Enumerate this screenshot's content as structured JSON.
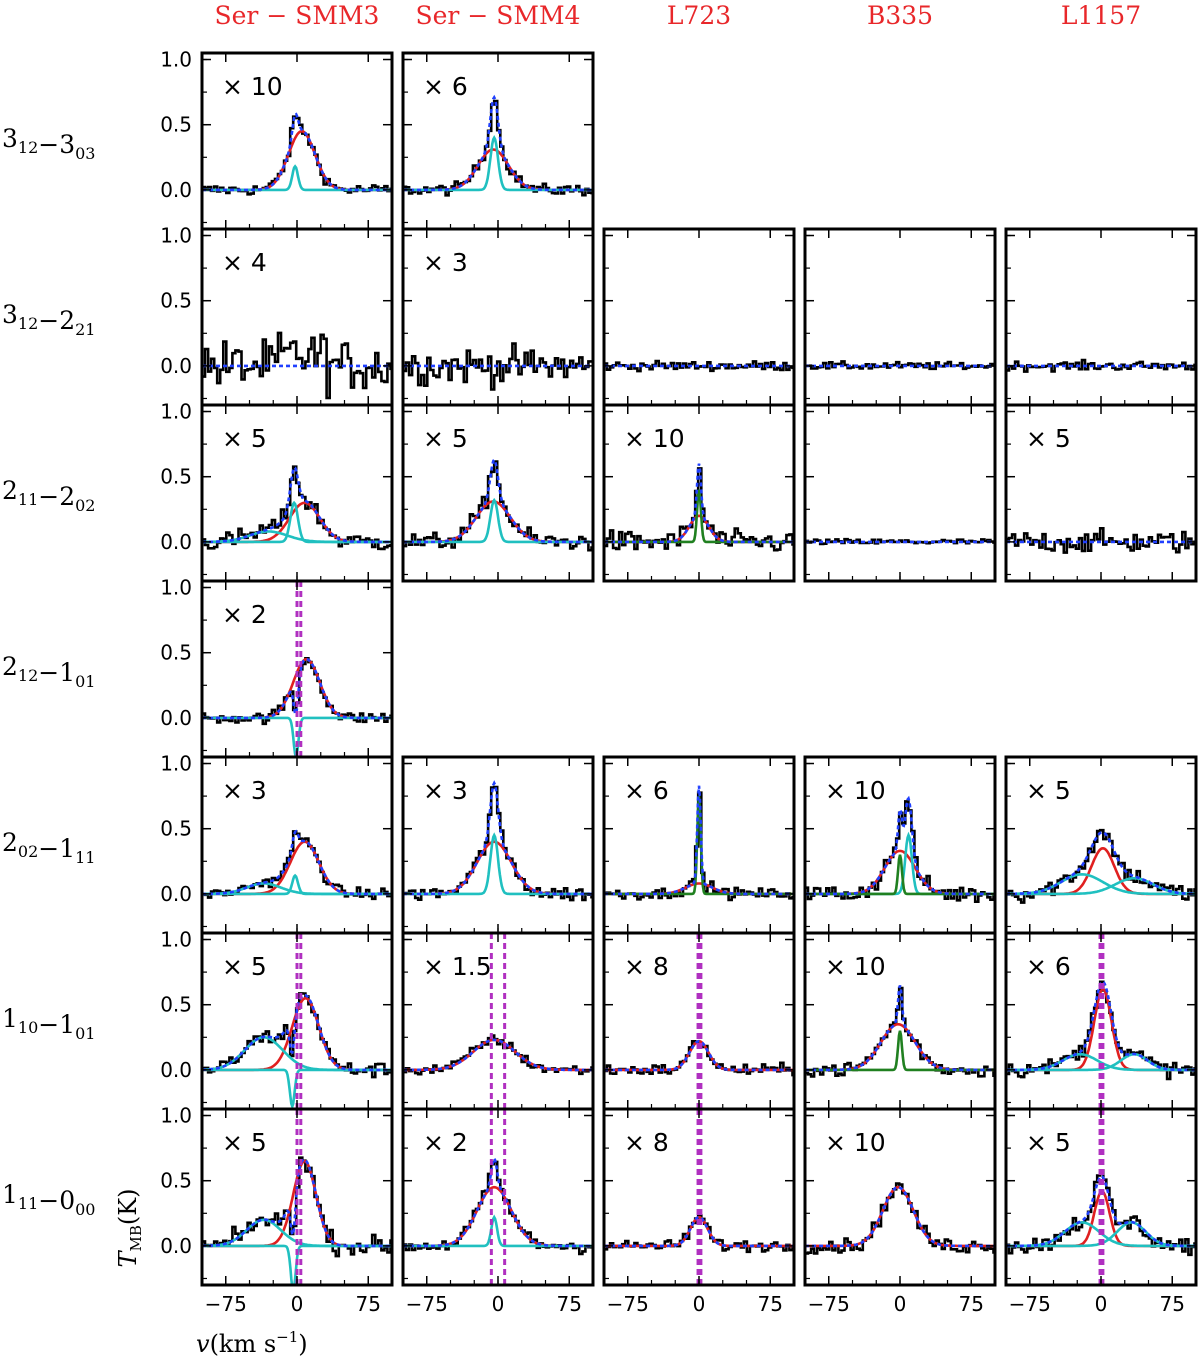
{
  "chart_data": {
    "type": "line",
    "columns": [
      "Ser − SMM3",
      "Ser − SMM4",
      "L723",
      "B335",
      "L1157"
    ],
    "rows": [
      {
        "base": "3",
        "sub1": "12",
        "sep": "−",
        "base2": "3",
        "sub2": "03"
      },
      {
        "base": "3",
        "sub1": "12",
        "sep": "−",
        "base2": "2",
        "sub2": "21"
      },
      {
        "base": "2",
        "sub1": "11",
        "sep": "−",
        "base2": "2",
        "sub2": "02"
      },
      {
        "base": "2",
        "sub1": "12",
        "sep": "−",
        "base2": "1",
        "sub2": "01"
      },
      {
        "base": "2",
        "sub1": "02",
        "sep": "−",
        "base2": "1",
        "sub2": "11"
      },
      {
        "base": "1",
        "sub1": "10",
        "sep": "−",
        "base2": "1",
        "sub2": "01"
      },
      {
        "base": "1",
        "sub1": "11",
        "sep": "−",
        "base2": "0",
        "sub2": "00"
      }
    ],
    "xlim": [
      -100,
      100
    ],
    "ylim": [
      -0.3,
      1.05
    ],
    "xticks": [
      -75,
      0,
      75
    ],
    "yticks": [
      0.0,
      0.5,
      1.0
    ],
    "ytick_labels": [
      "0.0",
      "0.5",
      "1.0"
    ],
    "xtick_labels": [
      "−75",
      "0",
      "75"
    ],
    "xlabel": {
      "main": "v(km s",
      "sup": "−1",
      "close": ")"
    },
    "ylabel": {
      "main": "T",
      "sub": "MB",
      "rest": "(K)"
    },
    "colors": {
      "data": "#000000",
      "broad": "#e02020",
      "medium": "#20c0c0",
      "narrow": "#208020",
      "total": "#2040ff",
      "vline": "#b030c0",
      "title": "#e8272a"
    },
    "panels": [
      {
        "row": 0,
        "col": 0,
        "scale": "× 10",
        "noise": 0.03,
        "comps": [
          {
            "kind": "broad",
            "amp": 0.45,
            "cen": 5,
            "wid": 14
          },
          {
            "kind": "medium",
            "amp": 0.18,
            "cen": -2,
            "wid": 3
          }
        ]
      },
      {
        "row": 0,
        "col": 1,
        "scale": "× 6",
        "noise": 0.03,
        "comps": [
          {
            "kind": "broad",
            "amp": 0.31,
            "cen": -5,
            "wid": 16
          },
          {
            "kind": "medium",
            "amp": 0.4,
            "cen": -4,
            "wid": 4
          }
        ]
      },
      {
        "row": 1,
        "col": 0,
        "scale": "× 4",
        "noise": 0.14,
        "comps": []
      },
      {
        "row": 1,
        "col": 1,
        "scale": "× 3",
        "noise": 0.1,
        "comps": []
      },
      {
        "row": 1,
        "col": 2,
        "scale": "",
        "noise": 0.025,
        "comps": []
      },
      {
        "row": 1,
        "col": 3,
        "scale": "",
        "noise": 0.02,
        "comps": []
      },
      {
        "row": 1,
        "col": 4,
        "scale": "",
        "noise": 0.025,
        "comps": []
      },
      {
        "row": 2,
        "col": 0,
        "scale": "× 5",
        "noise": 0.05,
        "comps": [
          {
            "kind": "broad",
            "amp": 0.3,
            "cen": 8,
            "wid": 16
          },
          {
            "kind": "medium",
            "amp": 0.3,
            "cen": -3,
            "wid": 4
          },
          {
            "kind": "medium",
            "amp": 0.08,
            "cen": -30,
            "wid": 20
          }
        ]
      },
      {
        "row": 2,
        "col": 1,
        "scale": "× 5",
        "noise": 0.05,
        "comps": [
          {
            "kind": "broad",
            "amp": 0.31,
            "cen": -5,
            "wid": 18
          },
          {
            "kind": "medium",
            "amp": 0.32,
            "cen": -4,
            "wid": 4
          }
        ]
      },
      {
        "row": 2,
        "col": 2,
        "scale": "× 10",
        "noise": 0.06,
        "comps": [
          {
            "kind": "broad",
            "amp": 0.2,
            "cen": 0,
            "wid": 10
          },
          {
            "kind": "narrow",
            "amp": 0.4,
            "cen": 0,
            "wid": 2
          }
        ]
      },
      {
        "row": 2,
        "col": 3,
        "scale": "",
        "noise": 0.015,
        "comps": []
      },
      {
        "row": 2,
        "col": 4,
        "scale": "× 5",
        "noise": 0.06,
        "comps": []
      },
      {
        "row": 3,
        "col": 0,
        "scale": "× 2",
        "noise": 0.03,
        "vlines": [
          0,
          4
        ],
        "comps": [
          {
            "kind": "broad",
            "amp": 0.45,
            "cen": 10,
            "wid": 14
          },
          {
            "kind": "medium",
            "amp": -0.3,
            "cen": -1,
            "wid": 2.5
          }
        ]
      },
      {
        "row": 4,
        "col": 0,
        "scale": "× 3",
        "noise": 0.03,
        "comps": [
          {
            "kind": "broad",
            "amp": 0.4,
            "cen": 8,
            "wid": 15
          },
          {
            "kind": "medium",
            "amp": 0.14,
            "cen": -2,
            "wid": 3
          },
          {
            "kind": "medium",
            "amp": 0.08,
            "cen": -35,
            "wid": 18
          }
        ]
      },
      {
        "row": 4,
        "col": 1,
        "scale": "× 3",
        "noise": 0.04,
        "comps": [
          {
            "kind": "broad",
            "amp": 0.4,
            "cen": -4,
            "wid": 18
          },
          {
            "kind": "medium",
            "amp": 0.45,
            "cen": -4,
            "wid": 4
          }
        ]
      },
      {
        "row": 4,
        "col": 2,
        "scale": "× 6",
        "noise": 0.03,
        "comps": [
          {
            "kind": "broad",
            "amp": 0.08,
            "cen": 0,
            "wid": 14
          },
          {
            "kind": "narrow",
            "amp": 0.75,
            "cen": 0,
            "wid": 1.8
          }
        ]
      },
      {
        "row": 4,
        "col": 3,
        "scale": "× 10",
        "noise": 0.05,
        "comps": [
          {
            "kind": "broad",
            "amp": 0.33,
            "cen": 0,
            "wid": 16
          },
          {
            "kind": "medium",
            "amp": 0.45,
            "cen": 9,
            "wid": 3.5
          },
          {
            "kind": "narrow",
            "amp": 0.3,
            "cen": 0,
            "wid": 2
          }
        ]
      },
      {
        "row": 4,
        "col": 4,
        "scale": "× 5",
        "noise": 0.05,
        "comps": [
          {
            "kind": "broad",
            "amp": 0.35,
            "cen": 2,
            "wid": 12
          },
          {
            "kind": "medium",
            "amp": 0.15,
            "cen": -20,
            "wid": 22
          },
          {
            "kind": "medium",
            "amp": 0.12,
            "cen": 35,
            "wid": 20
          }
        ]
      },
      {
        "row": 5,
        "col": 0,
        "scale": "× 5",
        "noise": 0.04,
        "vlines": [
          0,
          4
        ],
        "comps": [
          {
            "kind": "broad",
            "amp": 0.55,
            "cen": 9,
            "wid": 14
          },
          {
            "kind": "medium",
            "amp": 0.25,
            "cen": -35,
            "wid": 20
          },
          {
            "kind": "medium",
            "amp": -0.28,
            "cen": -5,
            "wid": 2.5
          }
        ]
      },
      {
        "row": 5,
        "col": 1,
        "scale": "× 1.5",
        "noise": 0.03,
        "vlines": [
          -7,
          7
        ],
        "comps": [
          {
            "kind": "broad",
            "amp": 0.23,
            "cen": -4,
            "wid": 22
          }
        ]
      },
      {
        "row": 5,
        "col": 2,
        "scale": "× 8",
        "noise": 0.03,
        "vlines": [
          -1,
          2
        ],
        "comps": [
          {
            "kind": "broad",
            "amp": 0.22,
            "cen": 0,
            "wid": 10
          },
          {
            "kind": "narrow",
            "amp": 0.0,
            "cen": 0,
            "wid": 2
          }
        ]
      },
      {
        "row": 5,
        "col": 3,
        "scale": "× 10",
        "noise": 0.04,
        "comps": [
          {
            "kind": "broad",
            "amp": 0.35,
            "cen": -2,
            "wid": 18
          },
          {
            "kind": "narrow",
            "amp": 0.3,
            "cen": 0,
            "wid": 2
          }
        ]
      },
      {
        "row": 5,
        "col": 4,
        "scale": "× 6",
        "noise": 0.04,
        "vlines": [
          -1,
          2
        ],
        "comps": [
          {
            "kind": "broad",
            "amp": 0.62,
            "cen": 2,
            "wid": 9
          },
          {
            "kind": "medium",
            "amp": 0.12,
            "cen": -22,
            "wid": 18
          },
          {
            "kind": "medium",
            "amp": 0.12,
            "cen": 35,
            "wid": 14
          }
        ]
      },
      {
        "row": 6,
        "col": 0,
        "scale": "× 5",
        "noise": 0.05,
        "vlines": [
          0,
          4
        ],
        "comps": [
          {
            "kind": "broad",
            "amp": 0.65,
            "cen": 8,
            "wid": 12
          },
          {
            "kind": "medium",
            "amp": 0.2,
            "cen": -35,
            "wid": 18
          },
          {
            "kind": "medium",
            "amp": -0.35,
            "cen": -4,
            "wid": 2.5
          }
        ]
      },
      {
        "row": 6,
        "col": 1,
        "scale": "× 2",
        "noise": 0.04,
        "vlines": [
          -7,
          7
        ],
        "comps": [
          {
            "kind": "broad",
            "amp": 0.45,
            "cen": -4,
            "wid": 18
          },
          {
            "kind": "medium",
            "amp": 0.22,
            "cen": -4,
            "wid": 3
          }
        ]
      },
      {
        "row": 6,
        "col": 2,
        "scale": "× 8",
        "noise": 0.03,
        "vlines": [
          -1,
          2
        ],
        "comps": [
          {
            "kind": "broad",
            "amp": 0.22,
            "cen": 0,
            "wid": 9
          },
          {
            "kind": "narrow",
            "amp": 0.0,
            "cen": 0,
            "wid": 2
          }
        ]
      },
      {
        "row": 6,
        "col": 3,
        "scale": "× 10",
        "noise": 0.04,
        "comps": [
          {
            "kind": "broad",
            "amp": 0.45,
            "cen": -2,
            "wid": 16
          }
        ]
      },
      {
        "row": 6,
        "col": 4,
        "scale": "× 5",
        "noise": 0.05,
        "vlines": [
          -1,
          2
        ],
        "comps": [
          {
            "kind": "broad",
            "amp": 0.42,
            "cen": 1,
            "wid": 8
          },
          {
            "kind": "medium",
            "amp": 0.18,
            "cen": -20,
            "wid": 18
          },
          {
            "kind": "medium",
            "amp": 0.18,
            "cen": 32,
            "wid": 15
          }
        ]
      }
    ]
  }
}
